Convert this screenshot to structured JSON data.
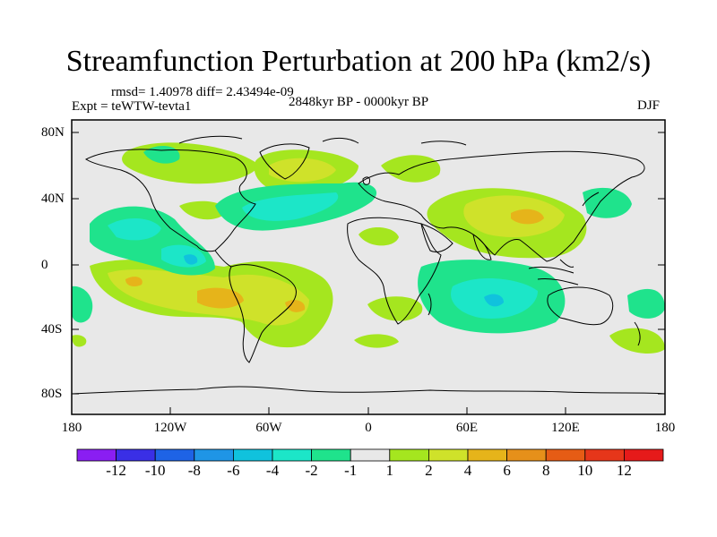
{
  "title": "Streamfunction Perturbation at 200 hPa (km2/s)",
  "stats": "rmsd= 1.40978 diff= 2.43494e-09",
  "experiment": "Expt = teWTW-tevta1",
  "period": "2848kyr BP - 0000kyr BP",
  "season": "DJF",
  "lat_ticks": [
    "80N",
    "40N",
    "0",
    "40S",
    "80S"
  ],
  "lon_ticks": [
    "180",
    "120W",
    "60W",
    "0",
    "60E",
    "120E",
    "180"
  ],
  "colorbar": {
    "labels": [
      "-12",
      "-10",
      "-8",
      "-6",
      "-4",
      "-2",
      "-1",
      "1",
      "2",
      "4",
      "6",
      "8",
      "10",
      "12"
    ],
    "colors": [
      "#8a1ef2",
      "#3a2fe6",
      "#1e63e6",
      "#1f95e6",
      "#10c2dd",
      "#1ce6c8",
      "#1fe38c",
      "#e8e8e8",
      "#a5e61f",
      "#cfe22a",
      "#e6b41a",
      "#e6901a",
      "#e65c15",
      "#e6361a",
      "#e61a1a"
    ]
  },
  "colors": {
    "neutral": "#e8e8e8",
    "pos1": "#a5e61f",
    "pos2": "#cfe22a",
    "pos3": "#e6b41a",
    "pos4": "#e6901a",
    "neg1": "#1fe38c",
    "neg2": "#1ce6c8",
    "neg3": "#10c2dd",
    "neg4": "#1f95e6"
  }
}
